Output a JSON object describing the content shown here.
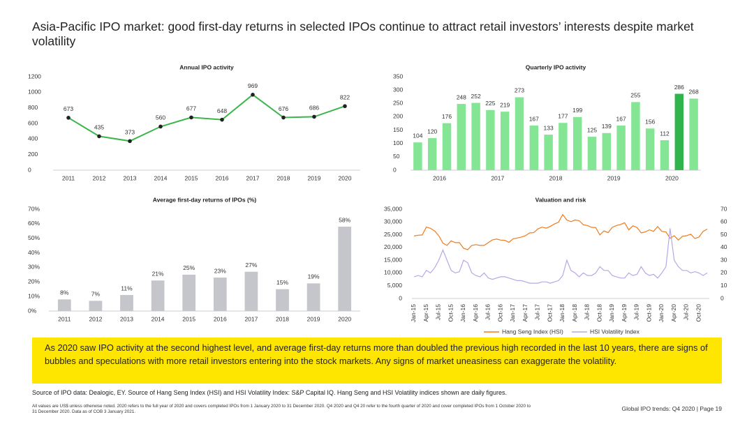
{
  "title": "Asia-Pacific IPO market: good first-day returns in selected IPOs continue to attract retail investors’ interests despite market volatility",
  "callout": "As 2020 saw IPO activity at the second highest level, and average first-day returns more than doubled the previous high recorded in the last 10 years, there are signs of bubbles and speculations with more retail investors entering into the stock markets. Any signs of market uneasiness can exaggerate the volatility.",
  "source": "Source of IPO data: Dealogic, EY. Source of Hang Seng Index (HSI) and HSI Volatility Index: S&P Capital IQ. Hang Seng and HSI Volatility indices shown are daily figures.",
  "footnote": "All values are US$ unless otherwise noted. 2020 refers to the full year of 2020 and covers completed IPOs from 1 January 2020 to 31 December 2020. Q4 2020 and Q4 20 refer to the fourth quarter of 2020 and cover completed IPOs from 1 October 2020 to 31 December 2020. Data as of COB 3 January 2021.",
  "footer": "Global IPO trends: Q4 2020  |  Page 19",
  "chart_data": [
    {
      "type": "line",
      "title": "Annual IPO activity",
      "categories": [
        "2011",
        "2012",
        "2013",
        "2014",
        "2015",
        "2016",
        "2017",
        "2018",
        "2019",
        "2020"
      ],
      "values": [
        673,
        435,
        373,
        560,
        677,
        648,
        969,
        676,
        686,
        822
      ],
      "color": "#3cb54a",
      "markers": true,
      "ylim": [
        0,
        1200
      ],
      "yticks": [
        0,
        200,
        400,
        600,
        800,
        1000,
        1200
      ],
      "grid": false
    },
    {
      "type": "bar",
      "title": "Quarterly IPO activity",
      "categories": [
        null,
        null,
        null,
        null,
        null,
        null,
        null,
        null,
        null,
        null,
        null,
        null,
        null,
        null,
        null,
        null,
        null,
        null,
        null,
        null
      ],
      "groups": [
        "2016",
        "2017",
        "2018",
        "2019",
        "2020"
      ],
      "values": [
        104,
        120,
        176,
        248,
        252,
        225,
        219,
        273,
        167,
        133,
        177,
        199,
        125,
        139,
        167,
        255,
        156,
        112,
        286,
        268
      ],
      "colors": [
        "#84e594",
        "#84e594",
        "#84e594",
        "#84e594",
        "#84e594",
        "#84e594",
        "#84e594",
        "#84e594",
        "#84e594",
        "#84e594",
        "#84e594",
        "#84e594",
        "#84e594",
        "#84e594",
        "#84e594",
        "#84e594",
        "#84e594",
        "#84e594",
        "#2fb54c",
        "#84e594"
      ],
      "ylim": [
        0,
        350
      ],
      "yticks": [
        0,
        50,
        100,
        150,
        200,
        250,
        300,
        350
      ],
      "grid": false
    },
    {
      "type": "bar",
      "title": "Average first-day returns of IPOs (%)",
      "categories": [
        "2011",
        "2012",
        "2013",
        "2014",
        "2015",
        "2016",
        "2017",
        "2018",
        "2019",
        "2020"
      ],
      "values": [
        8,
        7,
        11,
        21,
        25,
        23,
        27,
        15,
        19,
        58
      ],
      "value_labels": [
        "8%",
        "7%",
        "11%",
        "21%",
        "25%",
        "23%",
        "27%",
        "15%",
        "19%",
        "58%"
      ],
      "color": "#c5c5cc",
      "ylim": [
        0,
        70
      ],
      "yticks": [
        {
          "value": 0,
          "label": "0%"
        },
        {
          "value": 10,
          "label": "10%"
        },
        {
          "value": 20,
          "label": "20%"
        },
        {
          "value": 30,
          "label": "30%"
        },
        {
          "value": 40,
          "label": "40%"
        },
        {
          "value": 50,
          "label": "50%"
        },
        {
          "value": 60,
          "label": "60%"
        },
        {
          "value": 70,
          "label": "70%"
        }
      ],
      "grid": false
    },
    {
      "type": "line",
      "title": "Valuation and risk",
      "categories": [
        "Jan-15",
        null,
        null,
        "Apr-15",
        null,
        null,
        "Jul-15",
        null,
        null,
        "Oct-15",
        null,
        null,
        "Jan-16",
        null,
        null,
        "Apr-16",
        null,
        null,
        "Jul-16",
        null,
        null,
        "Oct-16",
        null,
        null,
        "Jan-17",
        null,
        null,
        "Apr-17",
        null,
        null,
        "Jul-17",
        null,
        null,
        "Oct-17",
        null,
        null,
        "Jan-18",
        null,
        null,
        "Apr-18",
        null,
        null,
        "Jul-18",
        null,
        null,
        "Oct-18",
        null,
        null,
        "Jan-19",
        null,
        null,
        "Apr-19",
        null,
        null,
        "Jul-19",
        null,
        null,
        "Oct-19",
        null,
        null,
        "Jan-20",
        null,
        null,
        "Apr-20",
        null,
        null,
        "Jul-20",
        null,
        null,
        "Oct-20",
        null,
        null
      ],
      "series": [
        {
          "name": "Hang Seng Index (HSI)",
          "color": "#f07b1a",
          "values": [
            24500,
            24800,
            24900,
            28000,
            27500,
            26500,
            24600,
            21700,
            20800,
            22600,
            21900,
            21900,
            19700,
            19100,
            20800,
            21100,
            20800,
            20800,
            21900,
            23000,
            23300,
            22900,
            22800,
            22000,
            23400,
            23700,
            24100,
            24600,
            25700,
            25800,
            27300,
            27970,
            27550,
            28250,
            29200,
            29900,
            32900,
            30800,
            30100,
            30800,
            30500,
            28900,
            28600,
            27900,
            27800,
            24900,
            26500,
            25800,
            27900,
            28600,
            29000,
            29700,
            26900,
            28500,
            27800,
            25700,
            26100,
            26900,
            26300,
            28200,
            26300,
            26100,
            23600,
            24600,
            22900,
            24400,
            24600,
            25200,
            23500,
            24100,
            26300,
            27200
          ]
        },
        {
          "name": "HSI Volatility Index",
          "color": "#b9a6e6",
          "axis": "y2",
          "values": [
            17,
            18,
            17,
            22,
            20,
            24,
            30,
            38,
            30,
            22,
            20,
            21,
            30,
            28,
            20,
            18,
            17,
            20,
            16,
            15,
            16,
            17,
            17,
            16,
            15,
            14,
            14,
            13,
            12,
            12,
            12,
            13,
            13,
            12,
            13,
            14,
            18,
            30,
            22,
            20,
            17,
            20,
            18,
            18,
            20,
            25,
            22,
            22,
            18,
            17,
            16,
            16,
            20,
            18,
            19,
            25,
            20,
            18,
            19,
            16,
            20,
            25,
            55,
            30,
            25,
            22,
            22,
            20,
            21,
            20,
            18,
            20
          ]
        }
      ],
      "ylim": [
        0,
        35000
      ],
      "yticks": [
        0,
        {
          "value": 5000,
          "label": "5,000"
        },
        {
          "value": 10000,
          "label": "10,000"
        },
        {
          "value": 15000,
          "label": "15,000"
        },
        {
          "value": 20000,
          "label": "20,000"
        },
        {
          "value": 25000,
          "label": "25,000"
        },
        {
          "value": 30000,
          "label": "30,000"
        },
        {
          "value": 35000,
          "label": "35,000"
        }
      ],
      "y2lim": [
        0,
        70
      ],
      "y2ticks": [
        0,
        10,
        20,
        30,
        40,
        50,
        60,
        70
      ],
      "grid": false,
      "legend": "bottom"
    }
  ]
}
